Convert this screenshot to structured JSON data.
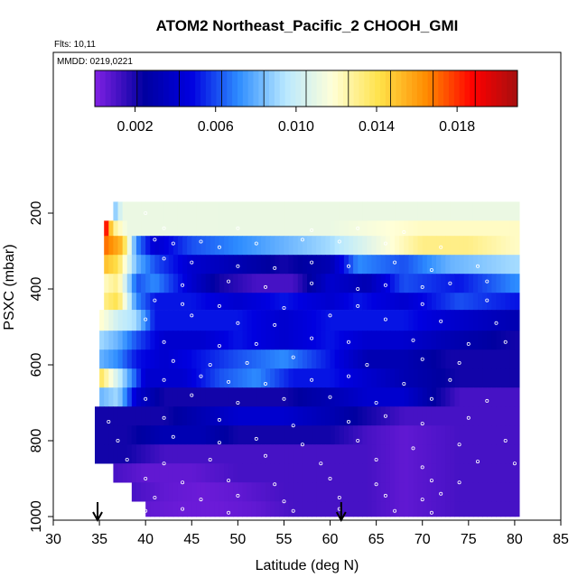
{
  "chart_data": {
    "type": "heatmap",
    "title": "ATOM2 Northeast_Pacific_2 CHOOH_GMI",
    "flights_label": "Flts: 10,11",
    "date_label": "MMDD: 0219,0221",
    "xlabel": "Latitude (deg N)",
    "ylabel": "PSXC (mbar)",
    "xlim": [
      30,
      85
    ],
    "ylim": [
      1000,
      0
    ],
    "x_ticks": [
      "30",
      "35",
      "40",
      "45",
      "50",
      "55",
      "60",
      "65",
      "70",
      "75",
      "80",
      "85"
    ],
    "y_ticks": [
      "200",
      "400",
      "600",
      "800",
      "1000"
    ],
    "colorbar": {
      "range": [
        0,
        0.021
      ],
      "tick_labels": [
        "0.002",
        "0.006",
        "0.010",
        "0.014",
        "0.018"
      ],
      "tick_values": [
        0.002,
        0.006,
        0.01,
        0.014,
        0.018
      ],
      "colors": [
        "#7b1fe0",
        "#0000a0",
        "#0000e0",
        "#2d8cff",
        "#b8e8ff",
        "#ffffd8",
        "#ffe24a",
        "#ff8c00",
        "#ff0000",
        "#a01010"
      ]
    },
    "flight_markers_lat": [
      34.8,
      61.2
    ],
    "layers": [
      {
        "p_top": 170,
        "p_bot": 220,
        "segments": [
          [
            36.5,
            0.008
          ],
          [
            37.5,
            0.011
          ],
          [
            38.5,
            0.011
          ],
          [
            39.5,
            0.011
          ]
        ]
      },
      {
        "p_top": 220,
        "p_bot": 260,
        "segments": [
          [
            35.5,
            0.02
          ],
          [
            36.5,
            0.013
          ],
          [
            38,
            0.011
          ],
          [
            40,
            0.011
          ],
          [
            50,
            0.011
          ],
          [
            60,
            0.011
          ],
          [
            70,
            0.012
          ],
          [
            79,
            0.012
          ]
        ]
      },
      {
        "p_top": 260,
        "p_bot": 310,
        "segments": [
          [
            35.5,
            0.017
          ],
          [
            36.5,
            0.016
          ],
          [
            37.5,
            0.015
          ],
          [
            39,
            0.007
          ],
          [
            41,
            0.004
          ],
          [
            45,
            0.006
          ],
          [
            50,
            0.007
          ],
          [
            55,
            0.008
          ],
          [
            60,
            0.009
          ],
          [
            65,
            0.011
          ],
          [
            70,
            0.013
          ],
          [
            75,
            0.013
          ],
          [
            80,
            0.012
          ]
        ]
      },
      {
        "p_top": 310,
        "p_bot": 360,
        "segments": [
          [
            35.5,
            0.015
          ],
          [
            37,
            0.014
          ],
          [
            39,
            0.008
          ],
          [
            41,
            0.006
          ],
          [
            45,
            0.004
          ],
          [
            50,
            0.003
          ],
          [
            55,
            0.002
          ],
          [
            60,
            0.003
          ],
          [
            63,
            0.007
          ],
          [
            68,
            0.006
          ],
          [
            73,
            0.008
          ],
          [
            80,
            0.009
          ]
        ]
      },
      {
        "p_top": 360,
        "p_bot": 410,
        "segments": [
          [
            35.5,
            0.012
          ],
          [
            37,
            0.013
          ],
          [
            39,
            0.006
          ],
          [
            41,
            0.007
          ],
          [
            45,
            0.004
          ],
          [
            48,
            0.002
          ],
          [
            52,
            0.001
          ],
          [
            56,
            0.001
          ],
          [
            60,
            0.004
          ],
          [
            64,
            0.003
          ],
          [
            68,
            0.006
          ],
          [
            74,
            0.005
          ],
          [
            80,
            0.007
          ]
        ]
      },
      {
        "p_top": 410,
        "p_bot": 455,
        "segments": [
          [
            35.5,
            0.013
          ],
          [
            37,
            0.014
          ],
          [
            39,
            0.007
          ],
          [
            41,
            0.005
          ],
          [
            45,
            0.005
          ],
          [
            50,
            0.004
          ],
          [
            55,
            0.005
          ],
          [
            60,
            0.004
          ],
          [
            63,
            0.005
          ],
          [
            68,
            0.004
          ],
          [
            74,
            0.006
          ],
          [
            80,
            0.005
          ]
        ]
      },
      {
        "p_top": 455,
        "p_bot": 510,
        "segments": [
          [
            35,
            0.012
          ],
          [
            37,
            0.01
          ],
          [
            39,
            0.009
          ],
          [
            41,
            0.005
          ],
          [
            45,
            0.005
          ],
          [
            50,
            0.005
          ],
          [
            55,
            0.004
          ],
          [
            60,
            0.005
          ],
          [
            64,
            0.005
          ],
          [
            68,
            0.005
          ],
          [
            73,
            0.004
          ],
          [
            80,
            0.003
          ]
        ]
      },
      {
        "p_top": 510,
        "p_bot": 560,
        "segments": [
          [
            35,
            0.009
          ],
          [
            37,
            0.008
          ],
          [
            39,
            0.006
          ],
          [
            42,
            0.004
          ],
          [
            46,
            0.004
          ],
          [
            50,
            0.005
          ],
          [
            55,
            0.004
          ],
          [
            60,
            0.005
          ],
          [
            64,
            0.004
          ],
          [
            68,
            0.004
          ],
          [
            73,
            0.003
          ],
          [
            80,
            0.002
          ]
        ]
      },
      {
        "p_top": 560,
        "p_bot": 610,
        "segments": [
          [
            35,
            0.008
          ],
          [
            37,
            0.007
          ],
          [
            39,
            0.005
          ],
          [
            42,
            0.004
          ],
          [
            46,
            0.005
          ],
          [
            50,
            0.006
          ],
          [
            55,
            0.007
          ],
          [
            60,
            0.005
          ],
          [
            64,
            0.003
          ],
          [
            68,
            0.003
          ],
          [
            73,
            0.002
          ],
          [
            80,
            0.002
          ]
        ]
      },
      {
        "p_top": 610,
        "p_bot": 660,
        "segments": [
          [
            35,
            0.014
          ],
          [
            36,
            0.012
          ],
          [
            38,
            0.008
          ],
          [
            40,
            0.004
          ],
          [
            44,
            0.004
          ],
          [
            48,
            0.006
          ],
          [
            52,
            0.007
          ],
          [
            56,
            0.005
          ],
          [
            60,
            0.005
          ],
          [
            64,
            0.004
          ],
          [
            68,
            0.003
          ],
          [
            74,
            0.002
          ],
          [
            80,
            0.002
          ]
        ]
      },
      {
        "p_top": 660,
        "p_bot": 710,
        "segments": [
          [
            35,
            0.008
          ],
          [
            37,
            0.009
          ],
          [
            39,
            0.004
          ],
          [
            42,
            0.002
          ],
          [
            46,
            0.002
          ],
          [
            50,
            0.002
          ],
          [
            55,
            0.002
          ],
          [
            60,
            0.003
          ],
          [
            64,
            0.004
          ],
          [
            68,
            0.004
          ],
          [
            74,
            0.001
          ],
          [
            80,
            0.001
          ]
        ]
      },
      {
        "p_top": 710,
        "p_bot": 760,
        "segments": [
          [
            34.5,
            0.002
          ],
          [
            38,
            0.002
          ],
          [
            42,
            0.002
          ],
          [
            46,
            0.003
          ],
          [
            50,
            0.004
          ],
          [
            55,
            0.004
          ],
          [
            60,
            0.003
          ],
          [
            64,
            0.002
          ],
          [
            68,
            0.001
          ],
          [
            74,
            0.001
          ],
          [
            80,
            0.001
          ]
        ]
      },
      {
        "p_top": 760,
        "p_bot": 810,
        "segments": [
          [
            34.5,
            0.002
          ],
          [
            38,
            0.002
          ],
          [
            42,
            0.003
          ],
          [
            46,
            0.003
          ],
          [
            50,
            0.002
          ],
          [
            55,
            0.002
          ],
          [
            60,
            0.002
          ],
          [
            64,
            0.001
          ],
          [
            68,
            0.0005
          ],
          [
            74,
            0.001
          ],
          [
            80,
            0.001
          ]
        ]
      },
      {
        "p_top": 810,
        "p_bot": 860,
        "segments": [
          [
            34.5,
            0.002
          ],
          [
            38,
            0.002
          ],
          [
            42,
            0.001
          ],
          [
            46,
            0.001
          ],
          [
            50,
            0.001
          ],
          [
            55,
            0.001
          ],
          [
            60,
            0.001
          ],
          [
            64,
            0.001
          ],
          [
            68,
            0.0005
          ],
          [
            74,
            0.001
          ],
          [
            80,
            0.001
          ]
        ]
      },
      {
        "p_top": 860,
        "p_bot": 910,
        "segments": [
          [
            36.5,
            0.001
          ],
          [
            40,
            0.0005
          ],
          [
            45,
            0.0005
          ],
          [
            50,
            0.001
          ],
          [
            55,
            0.001
          ],
          [
            60,
            0.001
          ],
          [
            64,
            0.001
          ],
          [
            68,
            0.0005
          ],
          [
            74,
            0.001
          ],
          [
            80,
            0.001
          ]
        ]
      },
      {
        "p_top": 910,
        "p_bot": 960,
        "segments": [
          [
            38.5,
            0.001
          ],
          [
            42,
            0.0005
          ],
          [
            46,
            0.0003
          ],
          [
            50,
            0.0005
          ],
          [
            55,
            0.001
          ],
          [
            60,
            0.001
          ],
          [
            64,
            0.001
          ],
          [
            68,
            0.0005
          ],
          [
            74,
            0.001
          ],
          [
            80,
            0.001
          ]
        ]
      },
      {
        "p_top": 960,
        "p_bot": 1000,
        "segments": [
          [
            40,
            0.0005
          ],
          [
            44,
            0.0003
          ],
          [
            48,
            0.0003
          ],
          [
            52,
            0.0005
          ],
          [
            56,
            0.001
          ],
          [
            60,
            0.001
          ],
          [
            64,
            0.001
          ],
          [
            68,
            0.0005
          ],
          [
            74,
            0.001
          ],
          [
            80,
            0.001
          ]
        ]
      }
    ],
    "sample_points": [
      [
        40,
        200
      ],
      [
        42,
        240
      ],
      [
        50,
        240
      ],
      [
        58,
        245
      ],
      [
        63,
        240
      ],
      [
        68,
        250
      ],
      [
        41,
        270
      ],
      [
        43,
        280
      ],
      [
        46,
        275
      ],
      [
        48,
        290
      ],
      [
        52,
        280
      ],
      [
        57,
        270
      ],
      [
        61,
        275
      ],
      [
        66,
        280
      ],
      [
        72,
        290
      ],
      [
        42,
        320
      ],
      [
        45,
        330
      ],
      [
        50,
        340
      ],
      [
        54,
        345
      ],
      [
        58,
        330
      ],
      [
        62,
        340
      ],
      [
        67,
        330
      ],
      [
        71,
        350
      ],
      [
        76,
        340
      ],
      [
        44,
        390
      ],
      [
        49,
        380
      ],
      [
        53,
        395
      ],
      [
        58,
        385
      ],
      [
        63,
        400
      ],
      [
        66,
        390
      ],
      [
        70,
        395
      ],
      [
        73,
        385
      ],
      [
        77,
        380
      ],
      [
        41,
        430
      ],
      [
        44,
        440
      ],
      [
        48,
        445
      ],
      [
        55,
        450
      ],
      [
        63,
        445
      ],
      [
        70,
        440
      ],
      [
        77,
        430
      ],
      [
        40,
        480
      ],
      [
        45,
        470
      ],
      [
        50,
        490
      ],
      [
        54,
        495
      ],
      [
        60,
        470
      ],
      [
        66,
        480
      ],
      [
        72,
        485
      ],
      [
        78,
        490
      ],
      [
        42,
        540
      ],
      [
        48,
        550
      ],
      [
        52,
        545
      ],
      [
        58,
        530
      ],
      [
        62,
        540
      ],
      [
        69,
        535
      ],
      [
        75,
        545
      ],
      [
        79,
        540
      ],
      [
        43,
        590
      ],
      [
        47,
        600
      ],
      [
        51,
        595
      ],
      [
        56,
        580
      ],
      [
        64,
        600
      ],
      [
        70,
        585
      ],
      [
        74,
        595
      ],
      [
        42,
        640
      ],
      [
        46,
        630
      ],
      [
        49,
        645
      ],
      [
        53,
        650
      ],
      [
        58,
        640
      ],
      [
        62,
        630
      ],
      [
        68,
        650
      ],
      [
        73,
        640
      ],
      [
        40,
        690
      ],
      [
        45,
        680
      ],
      [
        50,
        700
      ],
      [
        55,
        690
      ],
      [
        60,
        685
      ],
      [
        65,
        700
      ],
      [
        71,
        690
      ],
      [
        77,
        695
      ],
      [
        36,
        750
      ],
      [
        42,
        740
      ],
      [
        48,
        745
      ],
      [
        56,
        760
      ],
      [
        62,
        750
      ],
      [
        66,
        735
      ],
      [
        70,
        755
      ],
      [
        75,
        740
      ],
      [
        37,
        800
      ],
      [
        43,
        790
      ],
      [
        48,
        805
      ],
      [
        52,
        795
      ],
      [
        57,
        810
      ],
      [
        63,
        800
      ],
      [
        69,
        820
      ],
      [
        74,
        810
      ],
      [
        79,
        800
      ],
      [
        38,
        850
      ],
      [
        42,
        860
      ],
      [
        47,
        850
      ],
      [
        53,
        840
      ],
      [
        59,
        860
      ],
      [
        65,
        850
      ],
      [
        70,
        870
      ],
      [
        76,
        855
      ],
      [
        80,
        860
      ],
      [
        40,
        900
      ],
      [
        44,
        910
      ],
      [
        49,
        905
      ],
      [
        54,
        915
      ],
      [
        60,
        900
      ],
      [
        65,
        915
      ],
      [
        71,
        905
      ],
      [
        74,
        910
      ],
      [
        41,
        950
      ],
      [
        46,
        955
      ],
      [
        50,
        945
      ],
      [
        55,
        960
      ],
      [
        61,
        950
      ],
      [
        66,
        945
      ],
      [
        70,
        955
      ],
      [
        72,
        940
      ],
      [
        40,
        985
      ],
      [
        44,
        980
      ],
      [
        49,
        990
      ],
      [
        56,
        985
      ],
      [
        61,
        980
      ],
      [
        67,
        985
      ],
      [
        71,
        990
      ]
    ]
  }
}
